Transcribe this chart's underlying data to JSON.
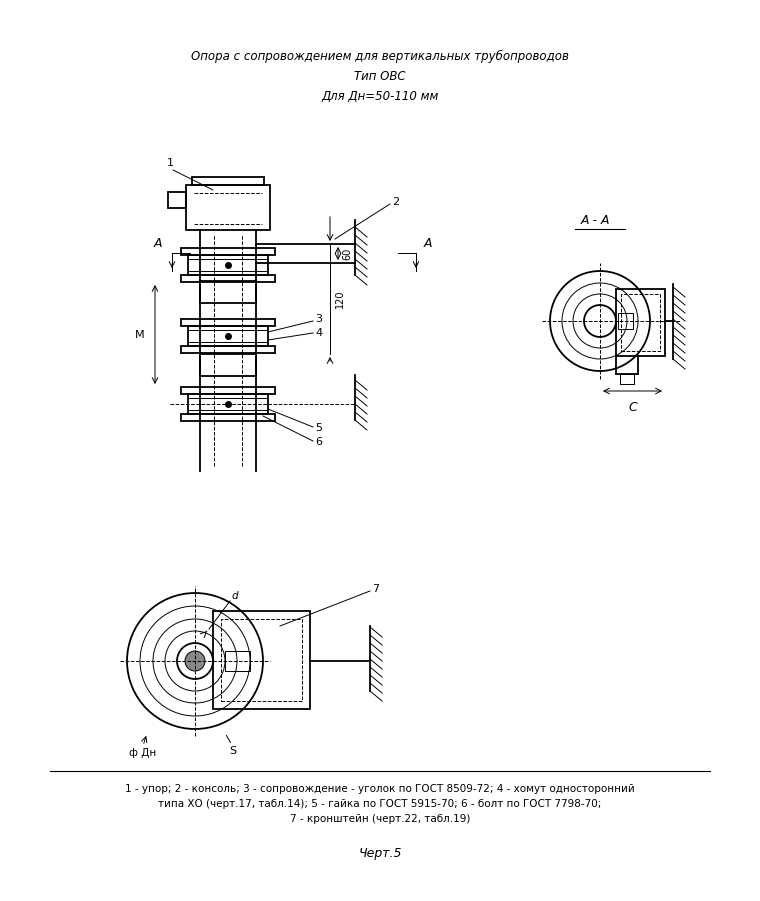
{
  "title1": "Опора с сопровождением для вертикальных трубопроводов",
  "title2": "Тип ОВС",
  "title3": "Для Дн=50-110 мм",
  "caption": "Черт.5",
  "legend_line1": "1 - упор; 2 - консоль; 3 - сопровождение - уголок по ГОСТ 8509-72; 4 - хомут односторонний",
  "legend_line2": "типа ХО (черт.17, табл.14); 5 - гайка по ГОСТ 5915-70; 6 - болт по ГОСТ 7798-70;",
  "legend_line3": "7 - кронштейн (черт.22, табл.19)",
  "bg_color": "#ffffff",
  "line_color": "#000000"
}
